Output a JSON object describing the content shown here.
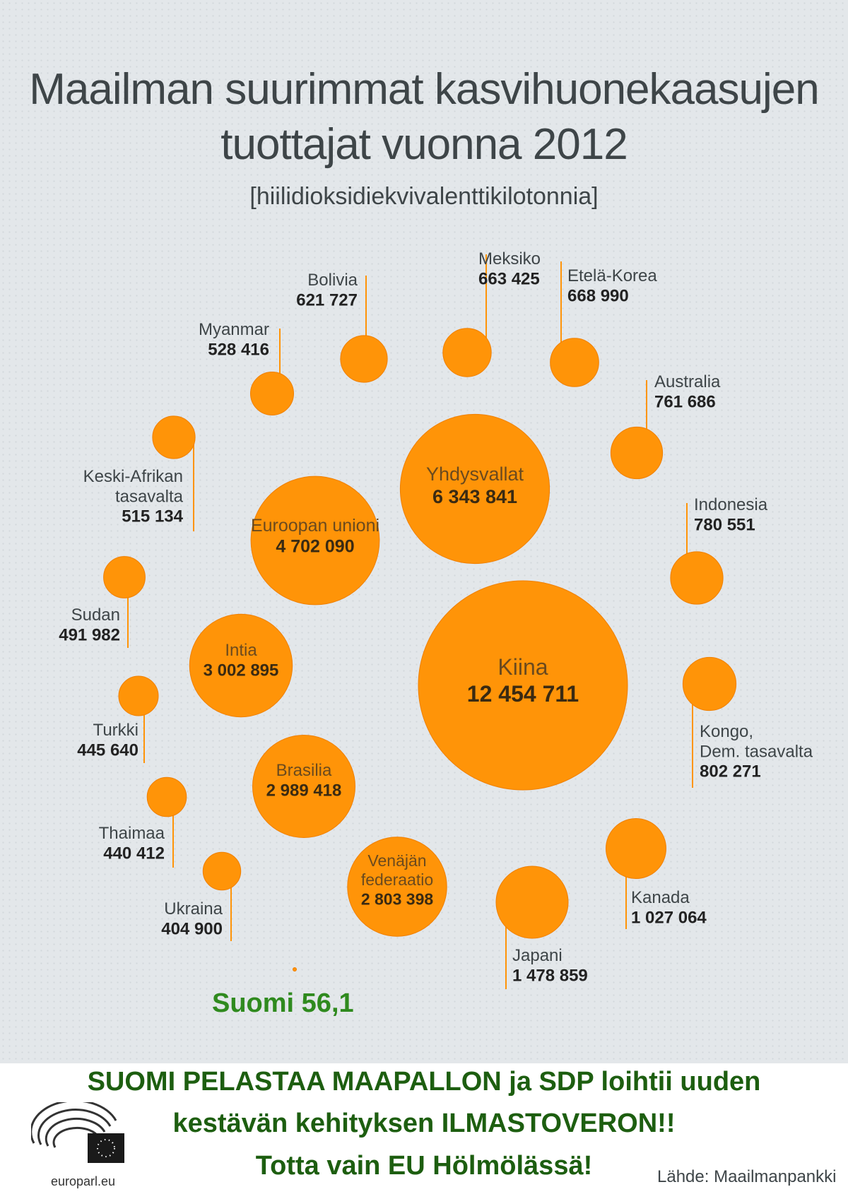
{
  "title_line1": "Maailman suurimmat kasvihuonekaasujen",
  "title_line2": "tuottajat vuonna 2012",
  "unit": "[hiilidioksidiekvivalenttikilotonnia]",
  "finland_label": "Suomi 56,1",
  "slogan": [
    "SUOMI PELASTAA MAAPALLON ja SDP loihtii uuden",
    "kestävän kehityksen ILMASTOVERON!!",
    "Totta vain EU Hölmölässä!"
  ],
  "logo_text": "europarl.eu",
  "source": "Lähde: Maailmanpankki",
  "colors": {
    "bubble": "#ff9408",
    "bubble_stroke": "#f07f00",
    "finland": "#2f8a1e",
    "slogan": "#1d5e10"
  },
  "chart_data": {
    "type": "bubble",
    "title": "Maailman suurimmat kasvihuonekaasujen tuottajat vuonna 2012",
    "unit": "[hiilidioksidiekvivalenttikilotonnia]",
    "series": [
      {
        "name": "Kiina",
        "label_lines": [
          "Kiina"
        ],
        "value_text": "12 454 711",
        "value": 12454711
      },
      {
        "name": "Yhdysvallat",
        "label_lines": [
          "Yhdysvallat"
        ],
        "value_text": "6 343 841",
        "value": 6343841
      },
      {
        "name": "Euroopan unioni",
        "label_lines": [
          "Euroopan unioni"
        ],
        "value_text": "4 702 090",
        "value": 4702090
      },
      {
        "name": "Intia",
        "label_lines": [
          "Intia"
        ],
        "value_text": "3 002 895",
        "value": 3002895
      },
      {
        "name": "Brasilia",
        "label_lines": [
          "Brasilia"
        ],
        "value_text": "2 989 418",
        "value": 2989418
      },
      {
        "name": "Venäjän federaatio",
        "label_lines": [
          "Venäjän",
          "federaatio"
        ],
        "value_text": "2 803 398",
        "value": 2803398
      },
      {
        "name": "Japani",
        "label_lines": [
          "Japani"
        ],
        "value_text": "1 478 859",
        "value": 1478859
      },
      {
        "name": "Kanada",
        "label_lines": [
          "Kanada"
        ],
        "value_text": "1 027 064",
        "value": 1027064
      },
      {
        "name": "Kongo, Dem. tasavalta",
        "label_lines": [
          "Kongo,",
          "Dem. tasavalta"
        ],
        "value_text": "802 271",
        "value": 802271
      },
      {
        "name": "Indonesia",
        "label_lines": [
          "Indonesia"
        ],
        "value_text": "780 551",
        "value": 780551
      },
      {
        "name": "Australia",
        "label_lines": [
          "Australia"
        ],
        "value_text": "761 686",
        "value": 761686
      },
      {
        "name": "Etelä-Korea",
        "label_lines": [
          "Etelä-Korea"
        ],
        "value_text": "668 990",
        "value": 668990
      },
      {
        "name": "Meksiko",
        "label_lines": [
          "Meksiko"
        ],
        "value_text": "663 425",
        "value": 663425
      },
      {
        "name": "Bolivia",
        "label_lines": [
          "Bolivia"
        ],
        "value_text": "621 727",
        "value": 621727
      },
      {
        "name": "Myanmar",
        "label_lines": [
          "Myanmar"
        ],
        "value_text": "528 416",
        "value": 528416
      },
      {
        "name": "Keski-Afrikan tasavalta",
        "label_lines": [
          "Keski-Afrikan",
          "tasavalta"
        ],
        "value_text": "515 134",
        "value": 515134
      },
      {
        "name": "Sudan",
        "label_lines": [
          "Sudan"
        ],
        "value_text": "491 982",
        "value": 491982
      },
      {
        "name": "Turkki",
        "label_lines": [
          "Turkki"
        ],
        "value_text": "445 640",
        "value": 445640
      },
      {
        "name": "Thaimaa",
        "label_lines": [
          "Thaimaa"
        ],
        "value_text": "440 412",
        "value": 440412
      },
      {
        "name": "Ukraina",
        "label_lines": [
          "Ukraina"
        ],
        "value_text": "404 900",
        "value": 404900
      },
      {
        "name": "Suomi",
        "label_lines": [
          "Suomi"
        ],
        "value_text": "56,1",
        "value": 56.1
      }
    ]
  }
}
